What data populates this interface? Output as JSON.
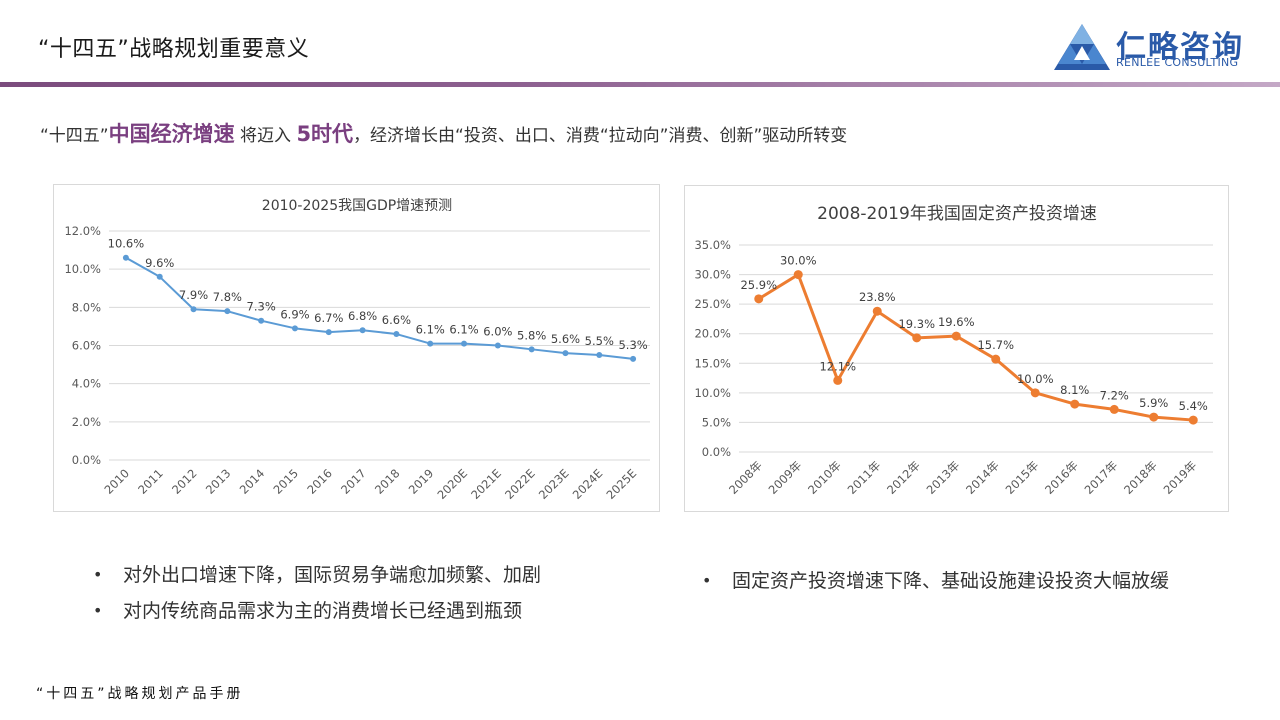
{
  "header": {
    "title": "“十四五”战略规划重要意义",
    "logo_cn": "仁略咨询",
    "logo_en": "RENLEE CONSULTING"
  },
  "headline": {
    "part1": "“十四五”",
    "highlight1": "中国经济增速",
    "part2": " 将迈入 ",
    "highlight2": "5时代",
    "part3": "，经济增长由“投资、出口、消费“拉动向”消费、创新”驱动所转变"
  },
  "colors": {
    "accent": "#7a3f80",
    "gdp_line": "#5b9bd5",
    "invest_line": "#ed7d31",
    "logo_blue": "#2a5aa8"
  },
  "chart_data": [
    {
      "type": "line",
      "title": "2010-2025我国GDP增速预测",
      "categories": [
        "2010",
        "2011",
        "2012",
        "2013",
        "2014",
        "2015",
        "2016",
        "2017",
        "2018",
        "2019",
        "2020E",
        "2021E",
        "2022E",
        "2023E",
        "2024E",
        "2025E"
      ],
      "values": [
        10.6,
        9.6,
        7.9,
        7.8,
        7.3,
        6.9,
        6.7,
        6.8,
        6.6,
        6.1,
        6.1,
        6.0,
        5.8,
        5.6,
        5.5,
        5.3
      ],
      "data_labels": [
        "10.6%",
        "9.6%",
        "7.9%",
        "7.8%",
        "7.3%",
        "6.9%",
        "6.7%",
        "6.8%",
        "6.6%",
        "6.1%",
        "6.1%",
        "6.0%",
        "5.8%",
        "5.6%",
        "5.5%",
        "5.3%"
      ],
      "yticks": [
        "0.0%",
        "2.0%",
        "4.0%",
        "6.0%",
        "8.0%",
        "10.0%",
        "12.0%"
      ],
      "ylim": [
        0,
        12
      ],
      "grid": true,
      "color": "#5b9bd5"
    },
    {
      "type": "line",
      "title": "2008-2019年我国固定资产投资增速",
      "categories": [
        "2008年",
        "2009年",
        "2010年",
        "2011年",
        "2012年",
        "2013年",
        "2014年",
        "2015年",
        "2016年",
        "2017年",
        "2018年",
        "2019年"
      ],
      "values": [
        25.9,
        30.0,
        12.1,
        23.8,
        19.3,
        19.6,
        15.7,
        10.0,
        8.1,
        7.2,
        5.9,
        5.4
      ],
      "data_labels": [
        "25.9%",
        "30.0%",
        "12.1%",
        "23.8%",
        "19.3%",
        "19.6%",
        "15.7%",
        "10.0%",
        "8.1%",
        "7.2%",
        "5.9%",
        "5.4%"
      ],
      "yticks": [
        "0.0%",
        "5.0%",
        "10.0%",
        "15.0%",
        "20.0%",
        "25.0%",
        "30.0%",
        "35.0%"
      ],
      "ylim": [
        0,
        35
      ],
      "grid": true,
      "color": "#ed7d31"
    }
  ],
  "bullets_left": [
    "对外出口增速下降，国际贸易争端愈加频繁、加剧",
    "对内传统商品需求为主的消费增长已经遇到瓶颈"
  ],
  "bullets_right": [
    "固定资产投资增速下降、基础设施建设投资大幅放缓"
  ],
  "footer": "“十四五”战略规划产品手册"
}
